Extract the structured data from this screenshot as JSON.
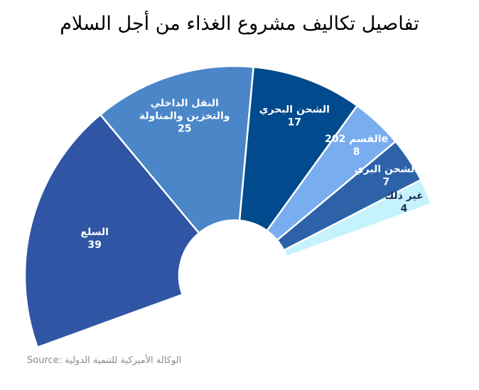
{
  "chart_data": {
    "type": "pie",
    "title": "تفاصيل تكاليف مشروع الغذاء من أجل السلام",
    "source": "Source: الوكالة الأميركية للتنمية الدولية",
    "segments": [
      {
        "label_lines": [
          "السلع"
        ],
        "value": 39,
        "color": "#2f55a4"
      },
      {
        "label_lines": [
          "النقل الداخلي",
          "والتخزين والمناولة"
        ],
        "value": 25,
        "color": "#4a86c8"
      },
      {
        "label_lines": [
          "الشحن البحري"
        ],
        "value": 17,
        "color": "#004a8d"
      },
      {
        "label_lines": [
          "القسم 202e"
        ],
        "value": 8,
        "color": "#78adf0"
      },
      {
        "label_lines": [
          "الشحن البري"
        ],
        "value": 7,
        "color": "#2d62a8"
      },
      {
        "label_lines": [
          "غير ذلك"
        ],
        "value": 4,
        "color": "#c6f2fc"
      }
    ]
  }
}
